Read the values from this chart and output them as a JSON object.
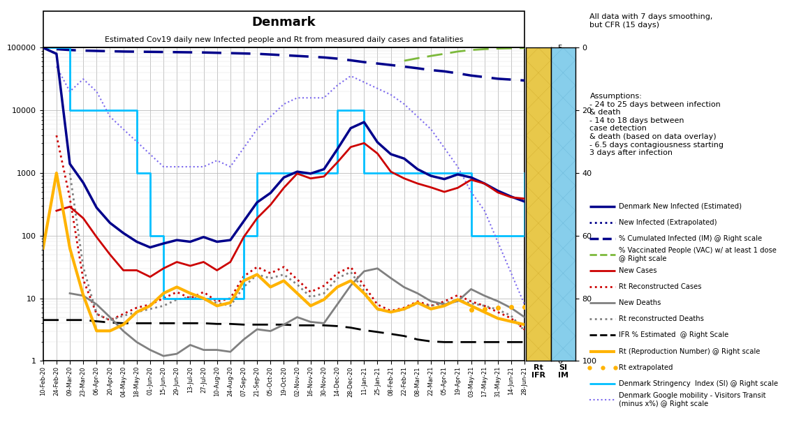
{
  "title": "Denmark",
  "subtitle": "Estimated Cov19 daily new Infected people and Rt from measured daily cases and fatalities",
  "annotation_text1": "All data with 7 days smoothing,\nbut CFR (15 days)",
  "annotation_text2": "Assumptions:\n- 24 to 25 days between infection\n& death\n- 14 to 18 days between\ncase detection\n& death (based on data overlay)\n- 6.5 days contagiousness starting\n3 days after infection",
  "legend_entries": [
    {
      "label": "Denmark New Infected (Estimated)",
      "color": "#00008B",
      "lw": 2.5,
      "ls": "solid",
      "marker": "none"
    },
    {
      "label": "New Infected (Extrapolated)",
      "color": "#00008B",
      "lw": 2.0,
      "ls": "dotted",
      "marker": "none"
    },
    {
      "label": "% Cumulated Infected (IM) @ Right scale",
      "color": "#00008B",
      "lw": 2.5,
      "ls": "dashed",
      "marker": "none"
    },
    {
      "label": "% Vaccinated People (VAC) w/ at least 1 dose\n@ Right scale",
      "color": "#7CB93B",
      "lw": 2.0,
      "ls": "dashed",
      "marker": "none"
    },
    {
      "label": "New Cases",
      "color": "#CC0000",
      "lw": 2.0,
      "ls": "solid",
      "marker": "none"
    },
    {
      "label": "Rt Reconstructed Cases",
      "color": "#CC0000",
      "lw": 2.0,
      "ls": "dotted",
      "marker": "none"
    },
    {
      "label": "New Deaths",
      "color": "#808080",
      "lw": 2.0,
      "ls": "solid",
      "marker": "none"
    },
    {
      "label": "Rt reconstructed Deaths",
      "color": "#808080",
      "lw": 2.0,
      "ls": "dotted",
      "marker": "none"
    },
    {
      "label": "IFR % Estimated  @ Right Scale",
      "color": "#000000",
      "lw": 2.0,
      "ls": "dashed",
      "marker": "none"
    },
    {
      "label": "Rt (Reproduction Number) @ Right scale",
      "color": "#FFB300",
      "lw": 3.0,
      "ls": "solid",
      "marker": "none"
    },
    {
      "label": "Rt extrapolated",
      "color": "#FFB300",
      "lw": 2.0,
      "ls": "dotted",
      "marker": "o"
    },
    {
      "label": "Denmark Stringency  Index (SI) @ Right scale",
      "color": "#00BFFF",
      "lw": 2.0,
      "ls": "solid",
      "marker": "none"
    },
    {
      "label": "Denmark Google mobility - Visitors Transit\n(minus x%) @ Right scale",
      "color": "#7B68EE",
      "lw": 1.5,
      "ls": "dotted",
      "marker": "none"
    }
  ],
  "x_labels": [
    "10-Feb-20",
    "24-Feb-20",
    "09-Mar-20",
    "23-Mar-20",
    "06-Apr-20",
    "20-Apr-20",
    "04-May-20",
    "18-May-20",
    "01-Jun-20",
    "15-Jun-20",
    "29-Jun-20",
    "13-Jul-20",
    "27-Jul-20",
    "10-Aug-20",
    "24-Aug-20",
    "07-Sep-20",
    "21-Sep-20",
    "05-Oct-20",
    "19-Oct-20",
    "02-Nov-20",
    "16-Nov-20",
    "30-Nov-20",
    "14-Dec-20",
    "28-Dec-20",
    "11-Jan-21",
    "25-Jan-21",
    "08-Feb-21",
    "22-Feb-21",
    "08-Mar-21",
    "22-Mar-21",
    "05-Apr-21",
    "19-Apr-21",
    "03-May-21",
    "17-May-21",
    "31-May-21",
    "14-Jun-21",
    "28-Jun-21"
  ],
  "right_axis1_label": "Rt\nIFR",
  "right_axis2_label": "SI\nIM",
  "right_panel_color1": "#E8C84A",
  "right_panel_color2": "#87CEEB"
}
